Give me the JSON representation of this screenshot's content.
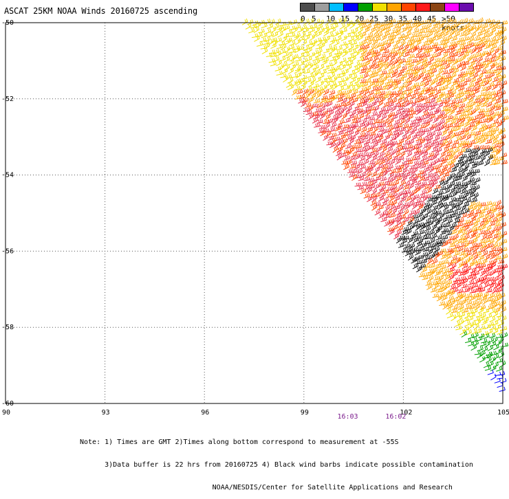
{
  "title": "ASCAT 25KM NOAA Winds 20160725 ascending",
  "legend": {
    "labels": [
      "0",
      "5",
      "10",
      "15",
      "20",
      "25",
      "30",
      "35",
      "40",
      "45",
      ">50 knots"
    ],
    "colors": [
      "#4d4d4d",
      "#9e9e9e",
      "#00bfff",
      "#0000ff",
      "#00a000",
      "#f0e000",
      "#ffa500",
      "#ff4500",
      "#ff1a1a",
      "#8b4513",
      "#ff00ff",
      "#6a0dad"
    ]
  },
  "map": {
    "lon_ticks": [
      "90",
      "93",
      "96",
      "99",
      "102",
      "105"
    ],
    "lat_ticks": [
      "-50",
      "-52",
      "-54",
      "-56",
      "-58",
      "-60"
    ],
    "lon_range": [
      90,
      105
    ],
    "lat_range": [
      -50,
      -60
    ]
  },
  "times": [
    {
      "lon": 100.3,
      "label": "16:03"
    },
    {
      "lon": 101.75,
      "label": "16:02"
    }
  ],
  "notes": [
    "Note: 1) Times are GMT 2)Times along bottom correspond to measurement at -55S",
    "      3)Data buffer is 22 hrs from 20160725 4) Black wind barbs indicate possible contamination",
    "                                NOAA/NESDIS/Center for Satellite Applications and Research"
  ]
}
